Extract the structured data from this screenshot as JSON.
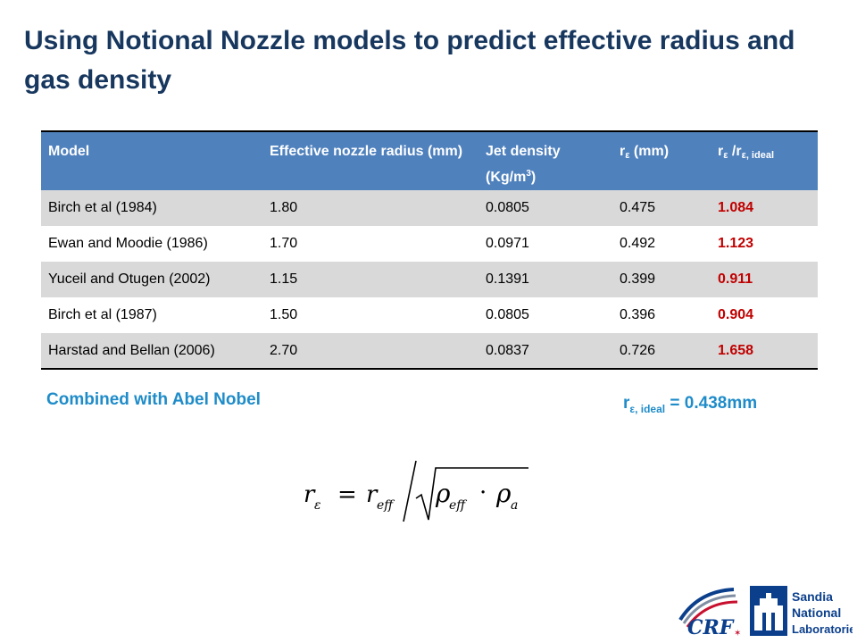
{
  "title": "Using Notional Nozzle models to predict effective radius and gas density",
  "table": {
    "headers": {
      "model": "Model",
      "radius": "Effective nozzle radius (mm)",
      "density_text": "Jet density (Kg/m",
      "density_sup": "3",
      "density_close": ")",
      "r_main": "r",
      "r_sub": "ε",
      "r_unit": " (mm)",
      "ratio_main1": "r",
      "ratio_sub1": "ε",
      "ratio_slash": " /r",
      "ratio_sub2": "ε, ideal"
    },
    "rows": [
      {
        "model": "Birch et al (1984)",
        "radius": "1.80",
        "density": "0.0805",
        "r": "0.475",
        "ratio": "1.084"
      },
      {
        "model": "Ewan and Moodie (1986)",
        "radius": "1.70",
        "density": "0.0971",
        "r": "0.492",
        "ratio": "1.123"
      },
      {
        "model": "Yuceil and Otugen (2002)",
        "radius": "1.15",
        "density": "0.1391",
        "r": "0.399",
        "ratio": "0.911"
      },
      {
        "model": "Birch et al (1987)",
        "radius": "1.50",
        "density": "0.0805",
        "r": "0.396",
        "ratio": "0.904"
      },
      {
        "model": "Harstad and Bellan (2006)",
        "radius": "2.70",
        "density": "0.0837",
        "r": "0.726",
        "ratio": "1.658"
      }
    ]
  },
  "combined_label": "Combined with Abel Nobel",
  "r_ideal": {
    "main": "r",
    "sub": "ε, ideal",
    "value": " = 0.438mm"
  },
  "formula": {
    "lhs": "r",
    "lhs_sub": "ε",
    "eq": "=",
    "r_eff": "r",
    "r_eff_sub": "eff",
    "rho": "ρ",
    "rho_eff_sub": "eff",
    "dot": "·",
    "rho_a_sub": "a"
  },
  "logos": {
    "crf_text": "CRF",
    "snl_line1": "Sandia",
    "snl_line2": "National",
    "snl_line3": "Laboratories"
  },
  "colors": {
    "title": "#17375e",
    "header_bg": "#4f81bd",
    "row_shade": "#d9d9d9",
    "ratio": "#c00000",
    "caption": "#1f8cc9",
    "snl_blue": "#0b3f8c",
    "crf_red": "#c8102e"
  }
}
